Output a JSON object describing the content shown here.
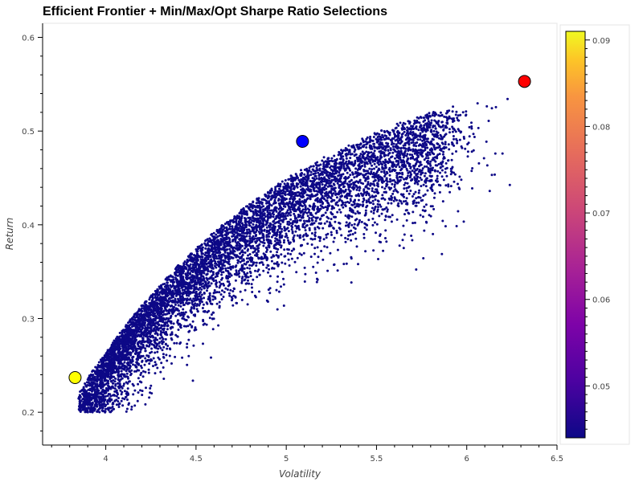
{
  "chart_data": {
    "type": "scatter",
    "title": "Efficient Frontier + Min/Max/Opt Sharpe Ratio Selections",
    "xlabel": "Volatility",
    "ylabel": "Return",
    "xlim": [
      3.65,
      6.5
    ],
    "ylim": [
      0.165,
      0.615
    ],
    "x_ticks": [
      4,
      4.5,
      5,
      5.5,
      6,
      6.5
    ],
    "y_ticks": [
      0.2,
      0.3,
      0.4,
      0.5,
      0.6
    ],
    "grid": false,
    "colorbar": {
      "range": [
        0.044,
        0.091
      ],
      "ticks": [
        0.05,
        0.06,
        0.07,
        0.08,
        0.09
      ],
      "palette": "plasma",
      "placement": "right"
    },
    "cloud": {
      "description_points": 9000,
      "x_min": 3.82,
      "x_max": 6.25,
      "y_min": 0.2,
      "y_max": 0.57
    },
    "highlight_points": [
      {
        "name": "min-volatility",
        "x": 3.83,
        "y": 0.237,
        "color": "#ffff00"
      },
      {
        "name": "max-sharpe",
        "x": 5.09,
        "y": 0.489,
        "color": "#0000ff"
      },
      {
        "name": "max-return",
        "x": 6.32,
        "y": 0.553,
        "color": "#ff0000"
      }
    ]
  }
}
